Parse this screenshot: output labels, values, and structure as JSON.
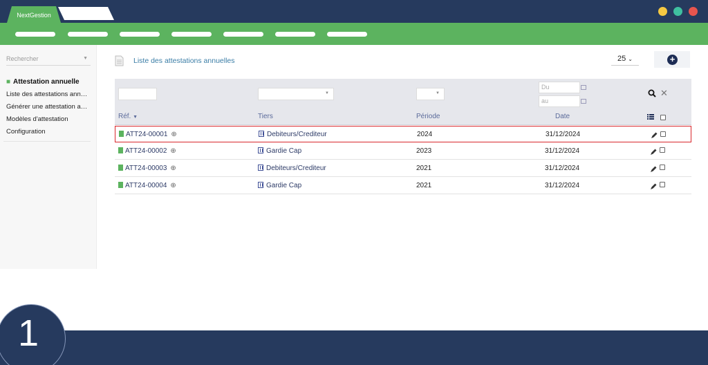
{
  "app": {
    "tab_label": "NextGestion"
  },
  "colors": {
    "brand_green": "#5cb35f",
    "navy": "#263a5e",
    "highlight": "#d9262a"
  },
  "window_dots": [
    "#f5c842",
    "#3fc0a0",
    "#e8554e"
  ],
  "sidebar": {
    "search_placeholder": "Rechercher",
    "section_title": "Attestation annuelle",
    "items": [
      {
        "label": "Liste des attestations ann…"
      },
      {
        "label": "Générer une attestation a…"
      },
      {
        "label": "Modèles d'attestation"
      },
      {
        "label": "Configuration"
      }
    ]
  },
  "main": {
    "title": "Liste des attestations annuelles",
    "per_page": "25",
    "add_icon": "plus-circle-icon",
    "filters": {
      "date_from_placeholder": "Du",
      "date_to_placeholder": "au"
    },
    "columns": {
      "ref": "Réf.",
      "tiers": "Tiers",
      "periode": "Période",
      "date": "Date"
    },
    "rows": [
      {
        "ref": "ATT24-00001",
        "tiers": "Debiteurs/Crediteur",
        "periode": "2024",
        "date": "31/12/2024",
        "selected": true
      },
      {
        "ref": "ATT24-00002",
        "tiers": "Gardie Cap",
        "periode": "2023",
        "date": "31/12/2024",
        "selected": false
      },
      {
        "ref": "ATT24-00003",
        "tiers": "Debiteurs/Crediteur",
        "periode": "2021",
        "date": "31/12/2024",
        "selected": false
      },
      {
        "ref": "ATT24-00004",
        "tiers": "Gardie Cap",
        "periode": "2021",
        "date": "31/12/2024",
        "selected": false
      }
    ]
  },
  "step": {
    "number": "1"
  }
}
